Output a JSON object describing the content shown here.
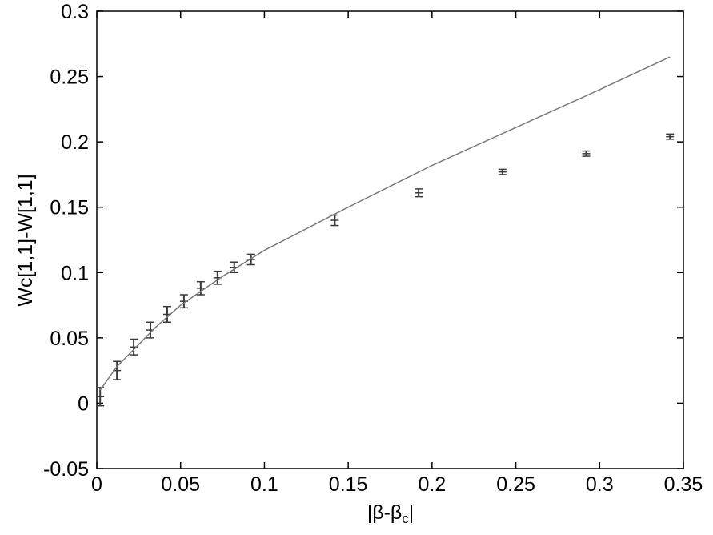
{
  "chart_data": {
    "type": "scatter",
    "xlabel": [
      "|β-β",
      "c",
      "|"
    ],
    "ylabel": "Wc[1,1]-W[1,1]",
    "xlim": [
      0,
      0.35
    ],
    "xticks": [
      0,
      0.05,
      0.1,
      0.15,
      0.2,
      0.25,
      0.3,
      0.35
    ],
    "ylim": [
      -0.05,
      0.3
    ],
    "yticks": [
      -0.05,
      0,
      0.05,
      0.1,
      0.15,
      0.2,
      0.25,
      0.3
    ],
    "series": [
      {
        "mode": "errorbar",
        "color": "#3a3a3a",
        "x": [
          0.002,
          0.012,
          0.022,
          0.032,
          0.042,
          0.052,
          0.062,
          0.072,
          0.082,
          0.092,
          0.142,
          0.192,
          0.242,
          0.292,
          0.342
        ],
        "values": [
          0.005,
          0.025,
          0.043,
          0.056,
          0.068,
          0.078,
          0.088,
          0.096,
          0.104,
          0.11,
          0.14,
          0.161,
          0.177,
          0.191,
          0.204
        ],
        "errors": [
          0.007,
          0.007,
          0.006,
          0.006,
          0.006,
          0.005,
          0.005,
          0.005,
          0.004,
          0.004,
          0.004,
          0.003,
          0.002,
          0.002,
          0.002
        ]
      },
      {
        "mode": "line",
        "color": "#7a7a7a",
        "x": [
          0.002,
          0.012,
          0.022,
          0.035,
          0.05,
          0.075,
          0.1,
          0.15,
          0.2,
          0.25,
          0.3,
          0.342
        ],
        "values": [
          0.01,
          0.028,
          0.041,
          0.058,
          0.075,
          0.097,
          0.117,
          0.15,
          0.182,
          0.211,
          0.24,
          0.265
        ]
      }
    ]
  }
}
